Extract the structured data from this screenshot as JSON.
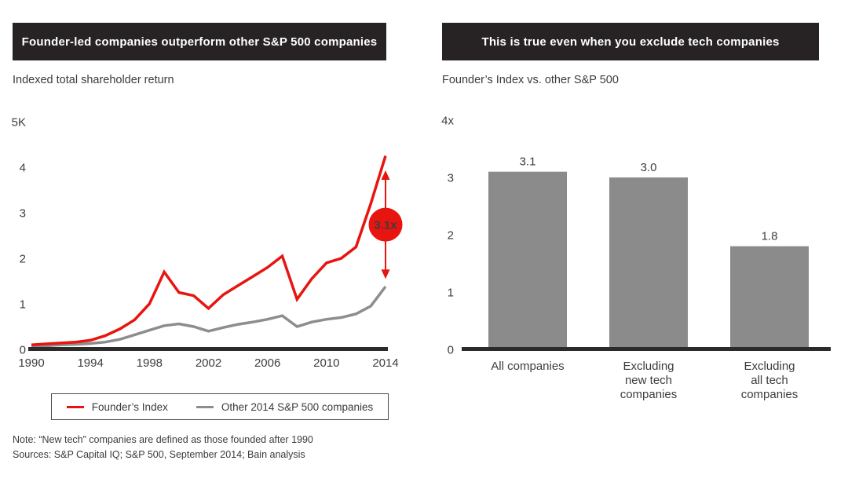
{
  "notes": [
    "Note: “New tech” companies are defined as those founded after 1990",
    "Sources: S&P Capital IQ; S&P 500, September 2014; Bain analysis"
  ],
  "colors": {
    "banner_bg": "#272324",
    "founder_red": "#e8140f",
    "other_gray": "#8d8d8d",
    "bar_gray": "#8b8b8b",
    "axis_black": "#2b2b2b",
    "label_text": "#3d3d3d"
  },
  "chart_data": [
    {
      "type": "line",
      "title": "Founder-led companies outperform other S&P 500 companies",
      "subtitle": "Indexed total shareholder return",
      "x": [
        1990,
        1991,
        1992,
        1993,
        1994,
        1995,
        1996,
        1997,
        1998,
        1999,
        2000,
        2001,
        2002,
        2003,
        2004,
        2005,
        2006,
        2007,
        2008,
        2009,
        2010,
        2011,
        2012,
        2013,
        2014
      ],
      "xticks": [
        "1990",
        "1994",
        "1998",
        "2002",
        "2006",
        "2010",
        "2014"
      ],
      "yticks": [
        "0",
        "1",
        "2",
        "3",
        "4",
        "5K"
      ],
      "ylim": [
        0,
        5
      ],
      "grid": false,
      "legend_position": "bottom",
      "series": [
        {
          "name": "Founder’s Index",
          "color": "#e8140f",
          "values": [
            0.1,
            0.12,
            0.14,
            0.16,
            0.2,
            0.3,
            0.45,
            0.65,
            1.0,
            1.7,
            1.25,
            1.18,
            0.9,
            1.2,
            1.4,
            1.6,
            1.8,
            2.05,
            1.1,
            1.55,
            1.9,
            2.0,
            2.25,
            3.2,
            4.25
          ]
        },
        {
          "name": "Other 2014 S&P 500 companies",
          "color": "#8d8d8d",
          "values": [
            0.07,
            0.08,
            0.1,
            0.11,
            0.13,
            0.16,
            0.22,
            0.32,
            0.42,
            0.52,
            0.56,
            0.5,
            0.4,
            0.48,
            0.55,
            0.6,
            0.66,
            0.74,
            0.5,
            0.6,
            0.66,
            0.7,
            0.78,
            0.95,
            1.38
          ]
        }
      ],
      "annotation": {
        "label": "3.1x",
        "x": 2014,
        "from": 1.6,
        "to": 3.88,
        "color": "#e8140f"
      }
    },
    {
      "type": "bar",
      "title": "This is true even when you exclude tech companies",
      "subtitle": "Founder’s Index vs. other S&P 500",
      "categories": [
        "All companies",
        "Excluding\nnew tech\ncompanies",
        "Excluding\nall tech\ncompanies"
      ],
      "values": [
        3.1,
        3.0,
        1.8
      ],
      "value_labels": [
        "3.1",
        "3.0",
        "1.8"
      ],
      "yticks": [
        "0",
        "1",
        "2",
        "3",
        "4x"
      ],
      "ylim": [
        0,
        4
      ],
      "grid": false,
      "bar_color": "#8b8b8b"
    }
  ]
}
